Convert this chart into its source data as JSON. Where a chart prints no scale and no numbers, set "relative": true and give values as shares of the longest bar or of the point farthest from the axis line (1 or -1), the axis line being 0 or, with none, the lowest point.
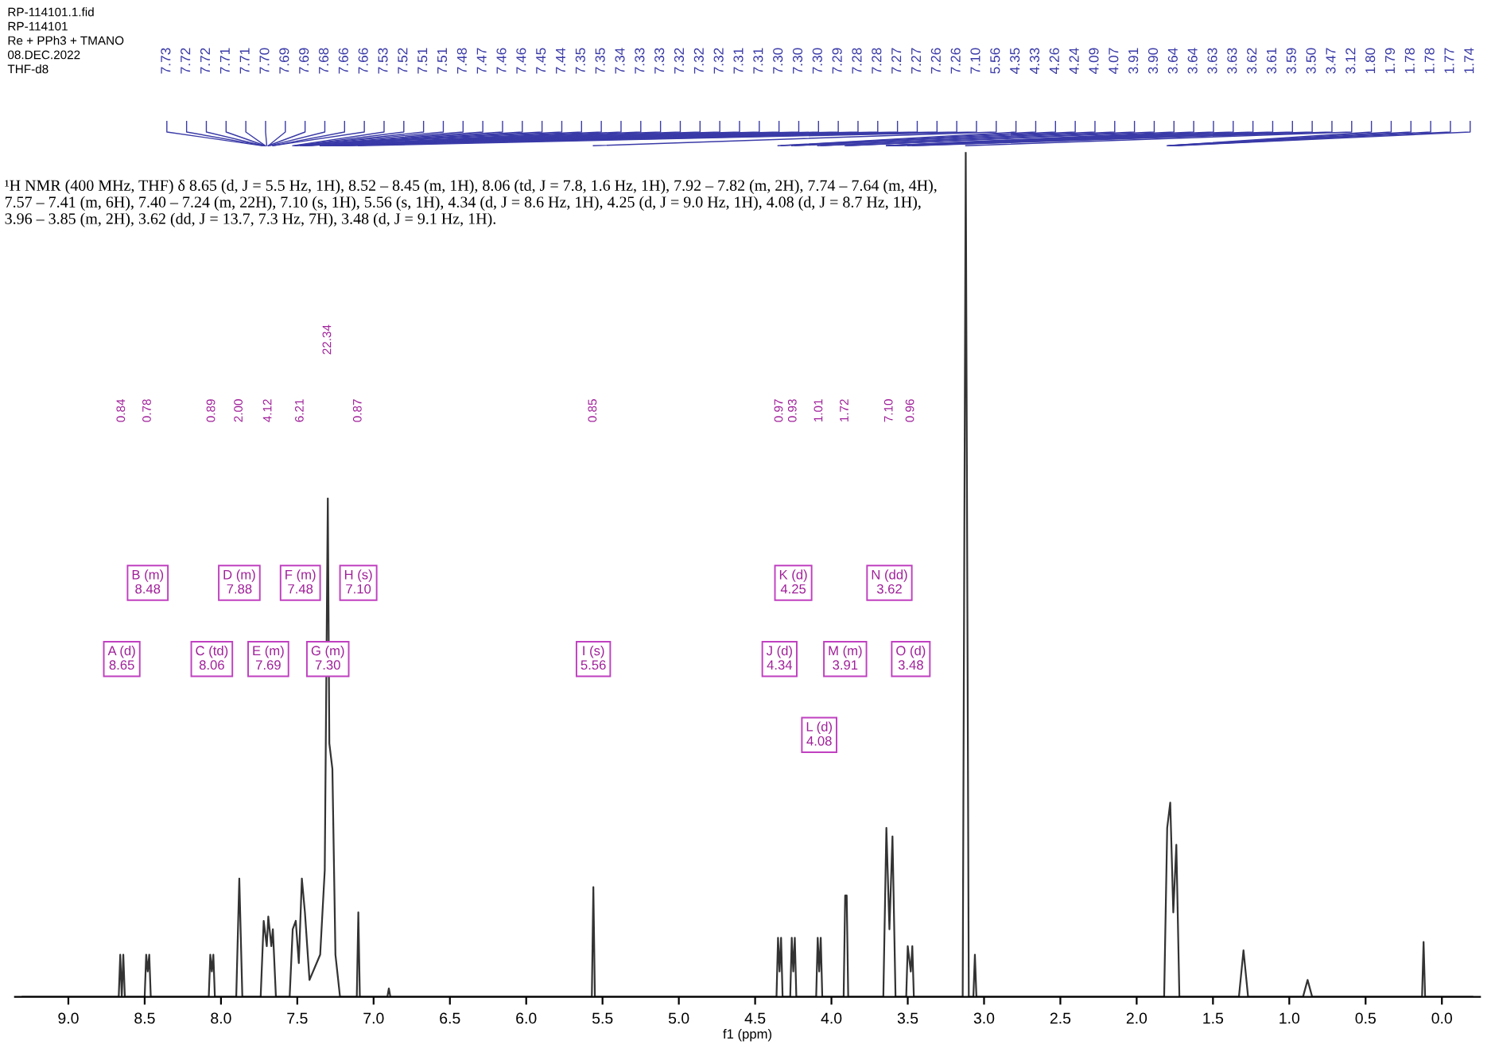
{
  "chart_data": {
    "type": "line",
    "relative": true,
    "xlabel": "f1 (ppm)",
    "xlim": [
      9.35,
      -0.25
    ],
    "xticks": [
      {
        "value": 9,
        "label": "9.0"
      },
      {
        "value": 8.5,
        "label": "8.5"
      },
      {
        "value": 8,
        "label": "8.0"
      },
      {
        "value": 7.5,
        "label": "7.5"
      },
      {
        "value": 7,
        "label": "7.0"
      },
      {
        "value": 6.5,
        "label": "6.5"
      },
      {
        "value": 6,
        "label": "6.0"
      },
      {
        "value": 5.5,
        "label": "5.5"
      },
      {
        "value": 5,
        "label": "5.0"
      },
      {
        "value": 4.5,
        "label": "4.5"
      },
      {
        "value": 4,
        "label": "4.0"
      },
      {
        "value": 3.5,
        "label": "3.5"
      },
      {
        "value": 3,
        "label": "3.0"
      },
      {
        "value": 2.5,
        "label": "2.5"
      },
      {
        "value": 2,
        "label": "2.0"
      },
      {
        "value": 1.5,
        "label": "1.5"
      },
      {
        "value": 1,
        "label": "1.0"
      },
      {
        "value": 0.5,
        "label": "0.5"
      },
      {
        "value": 0,
        "label": "0.0"
      }
    ],
    "grid": false,
    "legend": false,
    "marker": "none",
    "line_style": "solid",
    "x": [
      9.3,
      8.67,
      8.66,
      8.65,
      8.64,
      8.63,
      8.5,
      8.49,
      8.48,
      8.47,
      8.46,
      8.08,
      8.07,
      8.06,
      8.05,
      8.04,
      7.9,
      7.88,
      7.86,
      7.74,
      7.72,
      7.7,
      7.69,
      7.67,
      7.66,
      7.64,
      7.55,
      7.53,
      7.51,
      7.49,
      7.47,
      7.45,
      7.42,
      7.35,
      7.32,
      7.3,
      7.29,
      7.27,
      7.25,
      7.22,
      7.11,
      7.1,
      7.09,
      6.91,
      6.9,
      6.89,
      5.57,
      5.56,
      5.55,
      4.36,
      4.35,
      4.34,
      4.33,
      4.32,
      4.27,
      4.26,
      4.25,
      4.24,
      4.23,
      4.1,
      4.09,
      4.08,
      4.07,
      4.06,
      3.92,
      3.91,
      3.9,
      3.89,
      3.66,
      3.64,
      3.62,
      3.6,
      3.58,
      3.51,
      3.5,
      3.48,
      3.47,
      3.46,
      3.14,
      3.12,
      3.1,
      3.07,
      3.06,
      3.05,
      1.82,
      1.8,
      1.78,
      1.76,
      1.74,
      1.72,
      1.33,
      1.3,
      1.27,
      0.91,
      0.88,
      0.85,
      0.13,
      0.12,
      0.11,
      -0.2
    ],
    "series": [
      {
        "color": "#333333",
        "values": [
          0,
          0,
          0.05,
          0,
          0.05,
          0,
          0,
          0.05,
          0.03,
          0.05,
          0,
          0,
          0.05,
          0.03,
          0.05,
          0,
          0,
          0.14,
          0,
          0,
          0.09,
          0.06,
          0.095,
          0.06,
          0.08,
          0,
          0,
          0.08,
          0.09,
          0.04,
          0.14,
          0.1,
          0.02,
          0.05,
          0.15,
          0.59,
          0.3,
          0.27,
          0.05,
          0,
          0,
          0.1,
          0,
          0,
          0.01,
          0,
          0,
          0.13,
          0,
          0,
          0.07,
          0.03,
          0.07,
          0,
          0,
          0.07,
          0.03,
          0.07,
          0,
          0,
          0.07,
          0.03,
          0.07,
          0,
          0,
          0.12,
          0.12,
          0,
          0,
          0.2,
          0.08,
          0.19,
          0,
          0,
          0.06,
          0.03,
          0.06,
          0,
          0,
          1.0,
          0,
          0,
          0.05,
          0,
          0,
          0.2,
          0.23,
          0.1,
          0.18,
          0,
          0,
          0.055,
          0,
          0,
          0.02,
          0,
          0,
          0.065,
          0,
          0
        ]
      }
    ],
    "annotations": [
      "RP-114101.1.fid",
      "RP-114101",
      "Re + PPh3 + TMANO",
      "08.DEC.2022",
      "THF-d8",
      "¹H NMR (400 MHz, THF) δ 8.65 (d, J = 5.5 Hz, 1H), 8.52 – 8.45 (m, 1H), 8.06 (td, J = 7.8, 1.6 Hz, 1H), 7.92 – 7.82 (m, 2H), 7.74 – 7.64 (m, 4H), 7.57 – 7.41 (m, 6H), 7.40 – 7.24 (m, 22H), 7.10 (s, 1H), 5.56 (s, 1H), 4.34 (d, J = 8.6 Hz, 1H), 4.25 (d, J = 9.0 Hz, 1H), 4.08 (d, J = 8.7 Hz, 1H), 3.96 – 3.85 (m, 2H), 3.62 (dd, J = 13.7, 7.3 Hz, 7H), 3.48 (d, J = 9.1 Hz, 1H).",
      "7.73",
      "7.72",
      "7.72",
      "7.71",
      "7.71",
      "7.70",
      "7.69",
      "7.69",
      "7.68",
      "7.66",
      "7.66",
      "7.53",
      "7.52",
      "7.51",
      "7.51",
      "7.48",
      "7.47",
      "7.46",
      "7.46",
      "7.45",
      "7.44",
      "7.35",
      "7.35",
      "7.34",
      "7.33",
      "7.33",
      "7.32",
      "7.32",
      "7.32",
      "7.31",
      "7.31",
      "7.30",
      "7.30",
      "7.30",
      "7.29",
      "7.28",
      "7.28",
      "7.27",
      "7.27",
      "7.26",
      "7.26",
      "7.10",
      "5.56",
      "4.35",
      "4.33",
      "4.26",
      "4.24",
      "4.09",
      "4.07",
      "3.91",
      "3.90",
      "3.64",
      "3.64",
      "3.63",
      "3.63",
      "3.62",
      "3.61",
      "3.59",
      "3.50",
      "3.47",
      "3.12",
      "1.80",
      "1.79",
      "1.78",
      "1.78",
      "1.77",
      "1.74",
      "0.84",
      "0.78",
      "0.89",
      "2.00",
      "4.12",
      "6.21",
      "22.34",
      "0.87",
      "0.85",
      "0.97",
      "0.93",
      "1.01",
      "1.72",
      "7.10",
      "0.96",
      "A (d)\n8.65",
      "B (m)\n8.48",
      "C (td)\n8.06",
      "D (m)\n7.88",
      "E (m)\n7.69",
      "F (m)\n7.48",
      "G (m)\n7.30",
      "H (s)\n7.10",
      "I (s)\n5.56",
      "J (d)\n4.34",
      "K (d)\n4.25",
      "L (d)\n4.08",
      "M (m)\n3.91",
      "N (dd)\n3.62",
      "O (d)\n3.48"
    ]
  }
}
